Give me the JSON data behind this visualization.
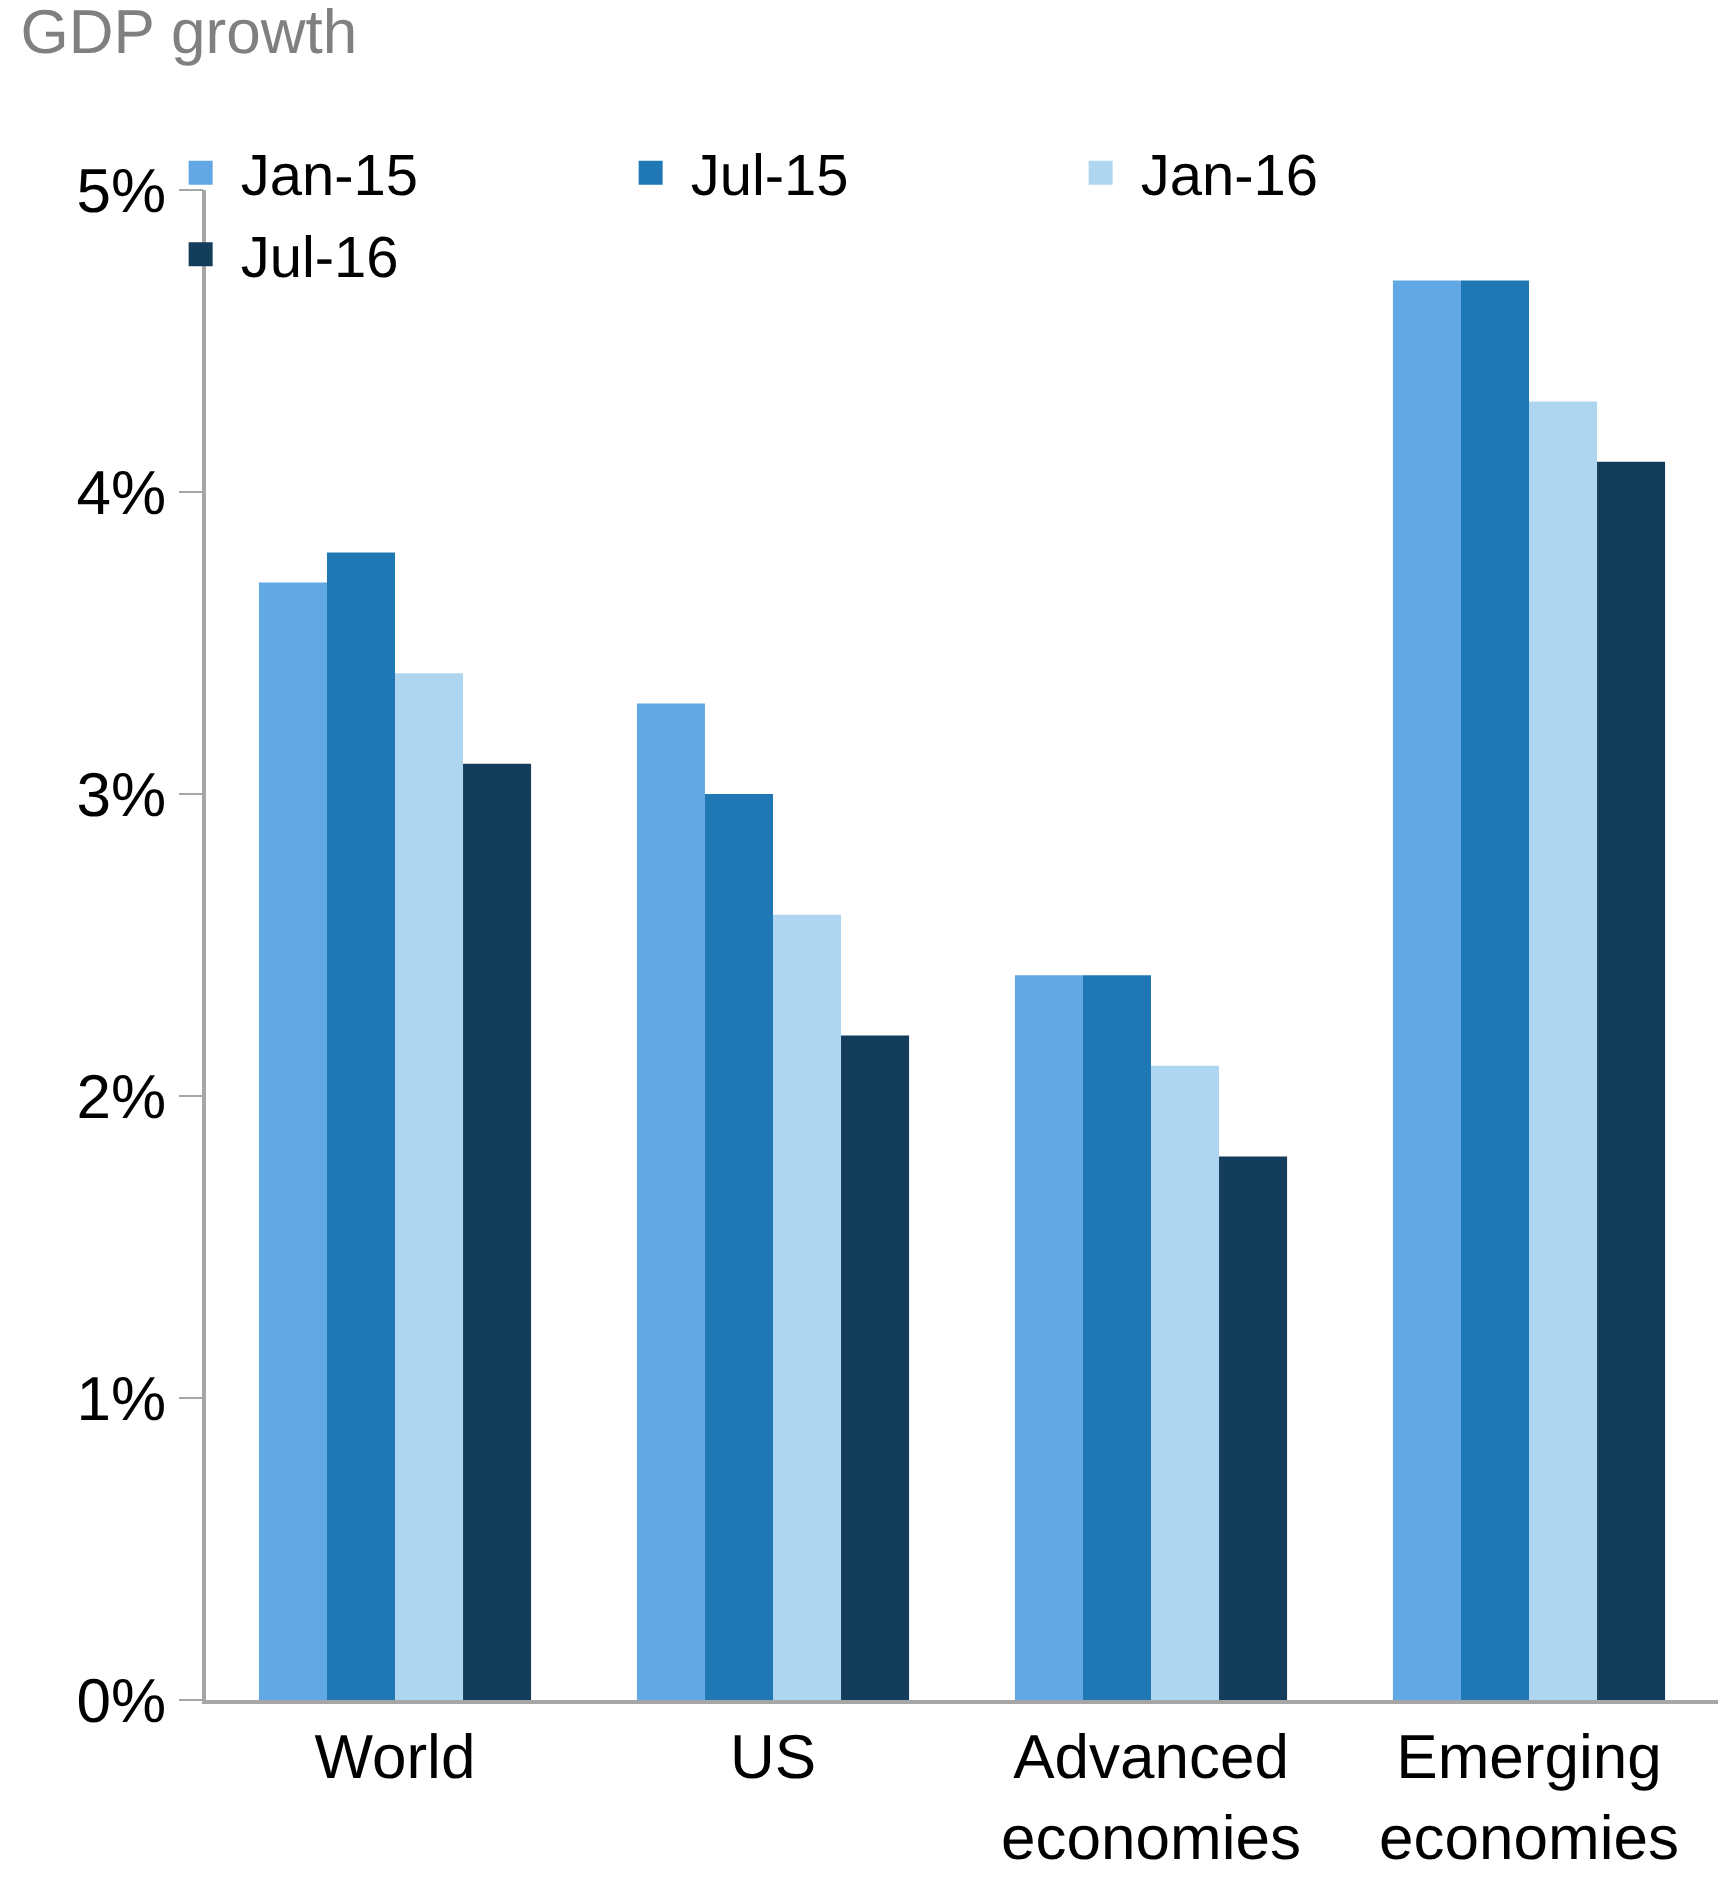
{
  "chart_data": {
    "type": "bar",
    "title": "GDP growth",
    "categories": [
      "World",
      "US",
      "Advanced economies",
      "Emerging economies"
    ],
    "series": [
      {
        "name": "Jan-15",
        "color": "#62a8e5",
        "values": [
          3.7,
          3.3,
          2.4,
          4.7
        ]
      },
      {
        "name": "Jul-15",
        "color": "#1f78b4",
        "values": [
          3.8,
          3.0,
          2.4,
          4.7
        ]
      },
      {
        "name": "Jan-16",
        "color": "#aed6f1",
        "values": [
          3.4,
          2.6,
          2.1,
          4.3
        ]
      },
      {
        "name": "Jul-16",
        "color": "#133d5a",
        "values": [
          3.1,
          2.2,
          1.8,
          4.1
        ]
      }
    ],
    "ylim": [
      0,
      5
    ],
    "yticks": [
      {
        "value": 0,
        "label": "0%"
      },
      {
        "value": 1,
        "label": "1%"
      },
      {
        "value": 2,
        "label": "2%"
      },
      {
        "value": 3,
        "label": "3%"
      },
      {
        "value": 4,
        "label": "4%"
      },
      {
        "value": 5,
        "label": "5%"
      }
    ],
    "legend": "top"
  }
}
